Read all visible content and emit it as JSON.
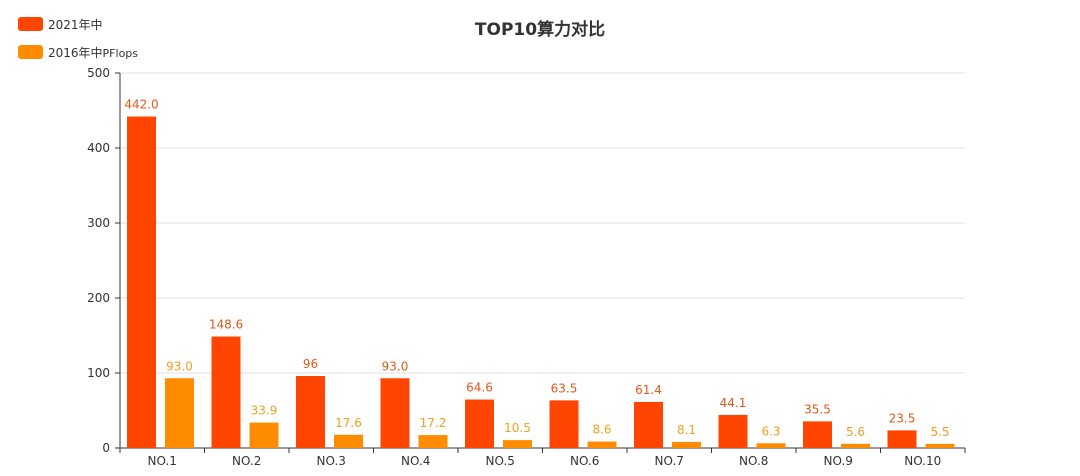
{
  "chart_data": {
    "type": "bar",
    "title": "TOP10算力对比",
    "xlabel": "",
    "ylabel": "",
    "categories": [
      "NO.1",
      "NO.2",
      "NO.3",
      "NO.4",
      "NO.5",
      "NO.6",
      "NO.7",
      "NO.8",
      "NO.9",
      "NO.10"
    ],
    "ylim": [
      0,
      500
    ],
    "yticks": [
      "0",
      "100",
      "200",
      "300",
      "400",
      "500"
    ],
    "grid": true,
    "legend_position": "top-left",
    "series": [
      {
        "name": "2021年中",
        "color": "#ff4500",
        "label_color": "#e05a1a",
        "values": [
          442.0,
          148.6,
          96,
          93.0,
          64.6,
          63.5,
          61.4,
          44.1,
          35.5,
          23.5
        ],
        "labels": [
          "442.0",
          "148.6",
          "96",
          "93.0",
          "64.6",
          "63.5",
          "61.4",
          "44.1",
          "35.5",
          "23.5"
        ]
      },
      {
        "name": "2016年中",
        "unit": "PFlops",
        "color": "#ff8c00",
        "label_color": "#f0a020",
        "values": [
          93.0,
          33.9,
          17.6,
          17.2,
          10.5,
          8.6,
          8.1,
          6.3,
          5.6,
          5.5
        ],
        "labels": [
          "93.0",
          "33.9",
          "17.6",
          "17.2",
          "10.5",
          "8.6",
          "8.1",
          "6.3",
          "5.6",
          "5.5"
        ]
      }
    ]
  }
}
